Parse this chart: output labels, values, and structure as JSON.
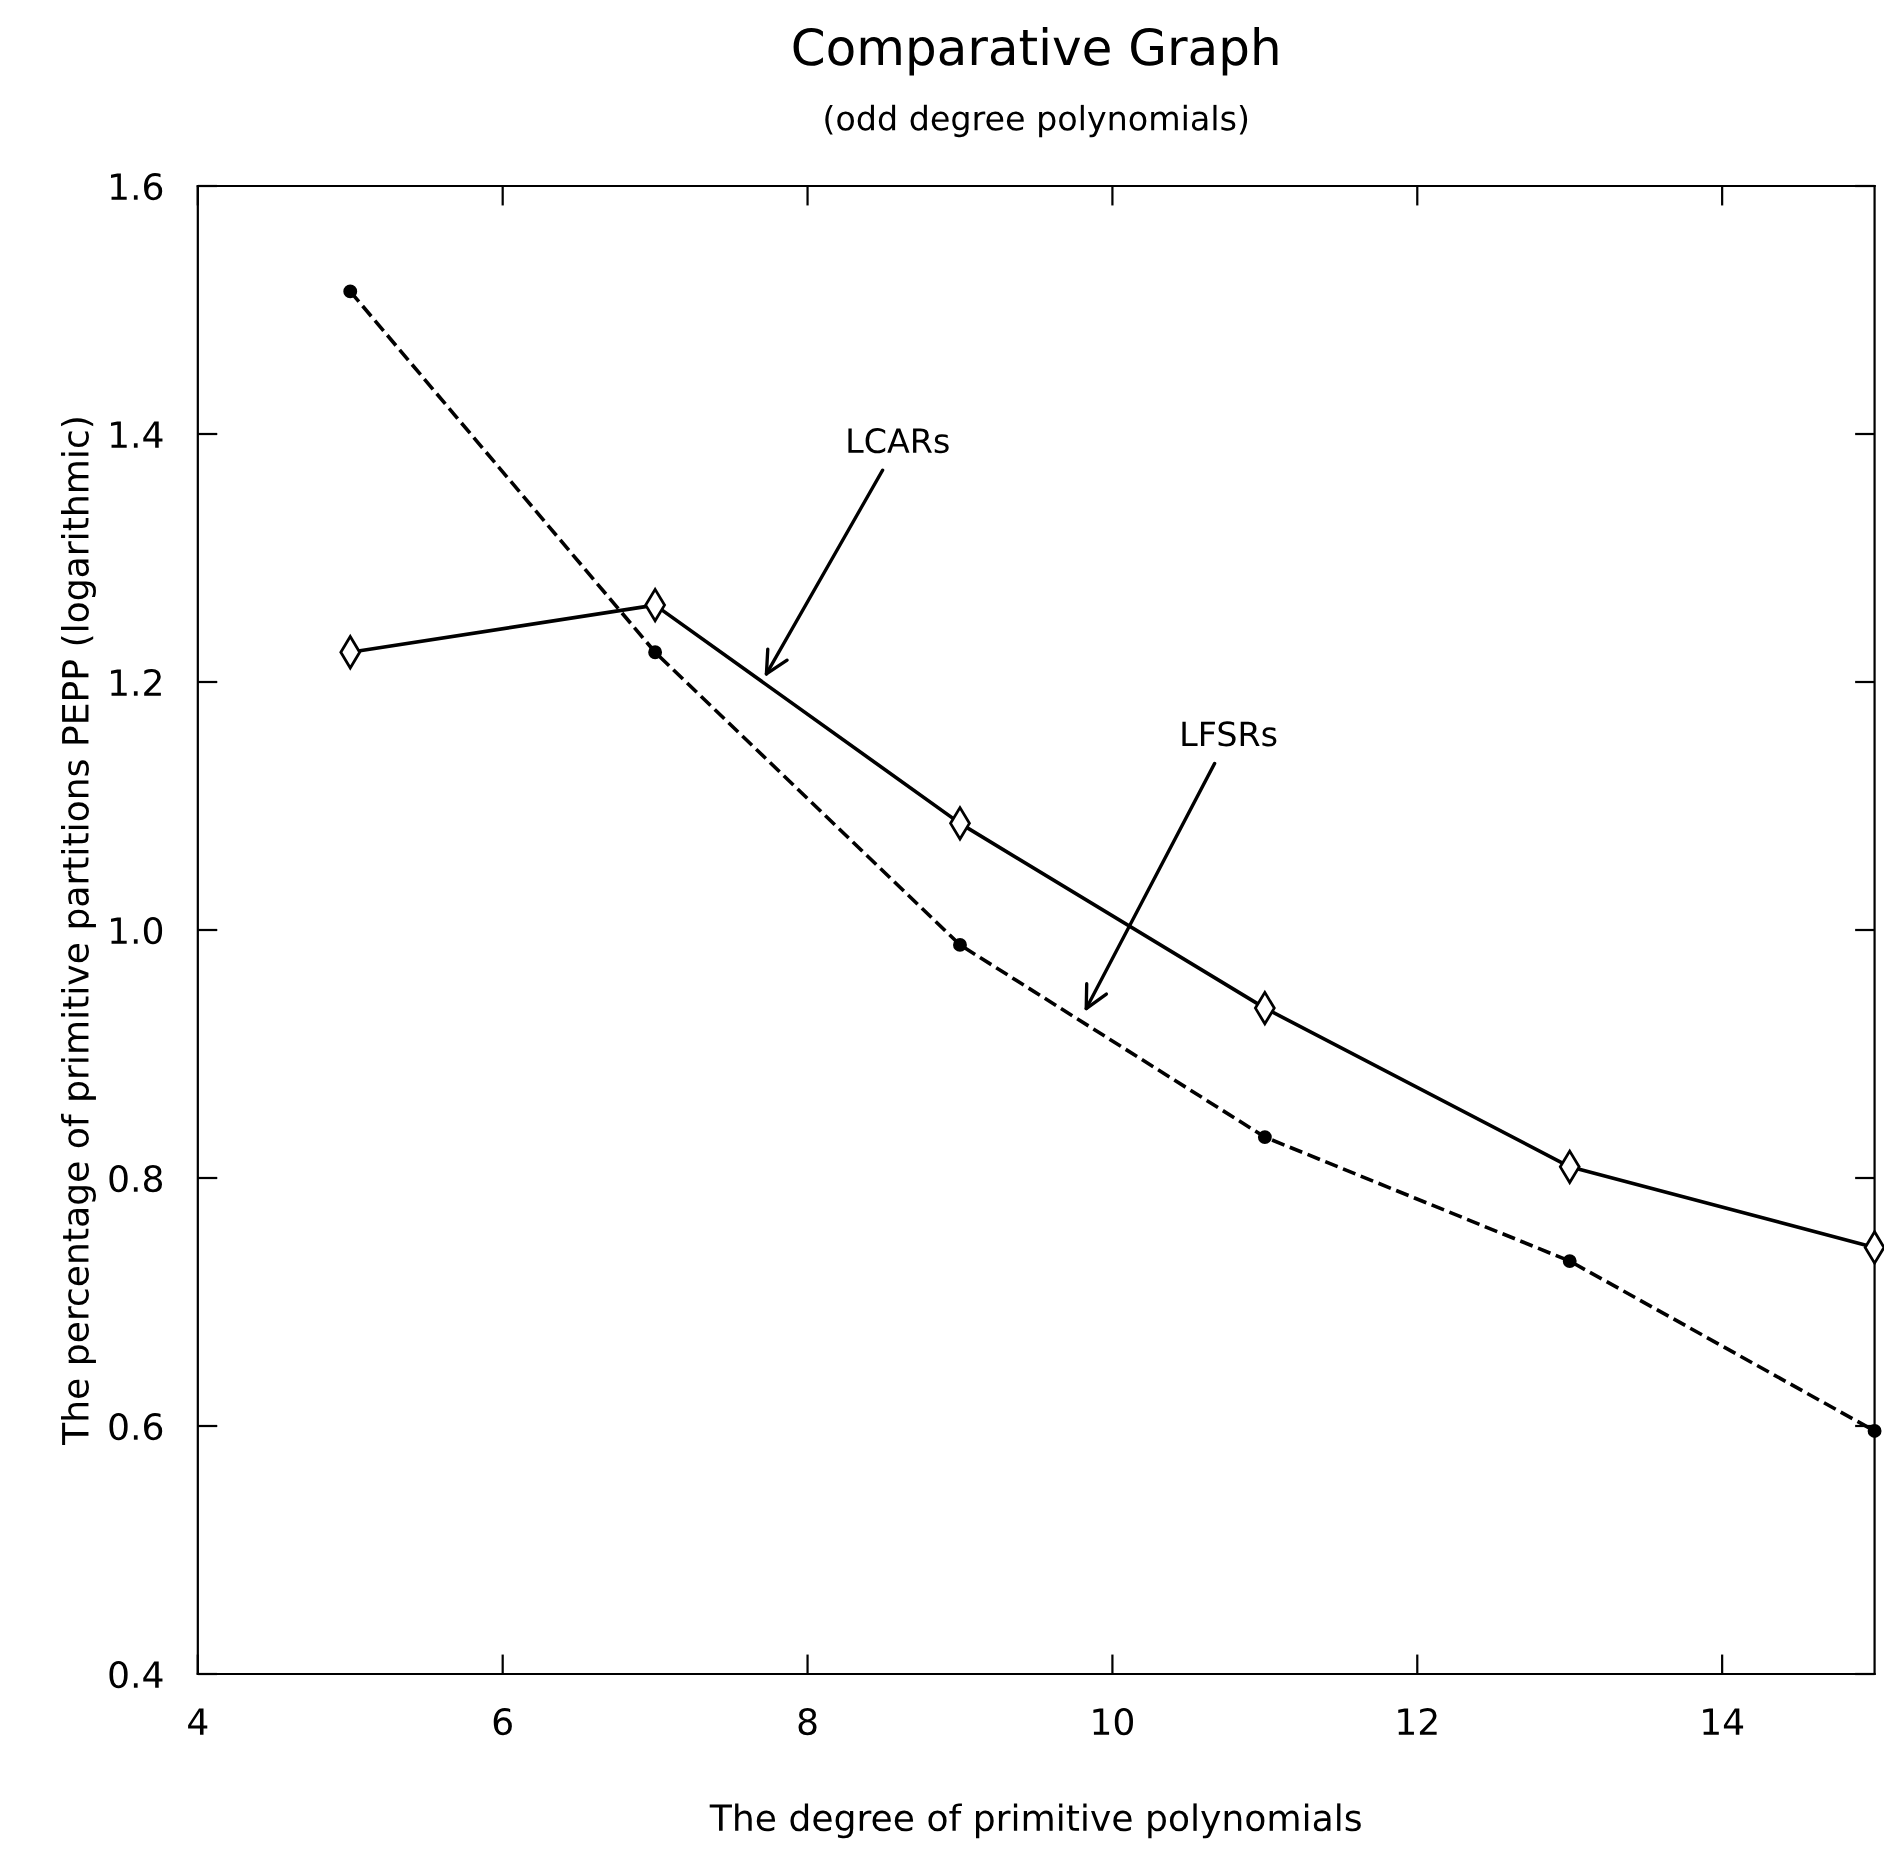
{
  "chart_data": {
    "type": "line",
    "title": "Comparative Graph",
    "subtitle": "(odd degree polynomials)",
    "xlabel": "The degree of primitive polynomials",
    "ylabel": "The percentage of primitive partitions PEPP (logarithmic)",
    "x": [
      5,
      7,
      9,
      11,
      13,
      15
    ],
    "series": [
      {
        "color": "#000000",
        "values": [
          1.224,
          1.262,
          1.086,
          0.937,
          0.809,
          0.744
        ],
        "marker": "diamond",
        "line_style": "solid"
      },
      {
        "color": "#000000",
        "values": [
          1.515,
          1.224,
          0.988,
          0.833,
          0.733,
          0.596
        ],
        "marker": "circle",
        "line_style": "dashed"
      }
    ],
    "annotations": [
      {
        "text": "LCARs",
        "x": 7.7,
        "y": 1.2
      },
      {
        "text": "LFSRs",
        "x": 9.8,
        "y": 0.93
      }
    ],
    "xlim": [
      4,
      15
    ],
    "ylim": [
      0.4,
      1.6
    ],
    "xticks": [
      4,
      6,
      8,
      10,
      12,
      14
    ],
    "yticks": [
      0.4,
      0.6,
      0.8,
      {
        "value": 1,
        "label": "1.0"
      },
      1.2,
      1.4,
      1.6
    ],
    "grid": false,
    "legend": false
  }
}
